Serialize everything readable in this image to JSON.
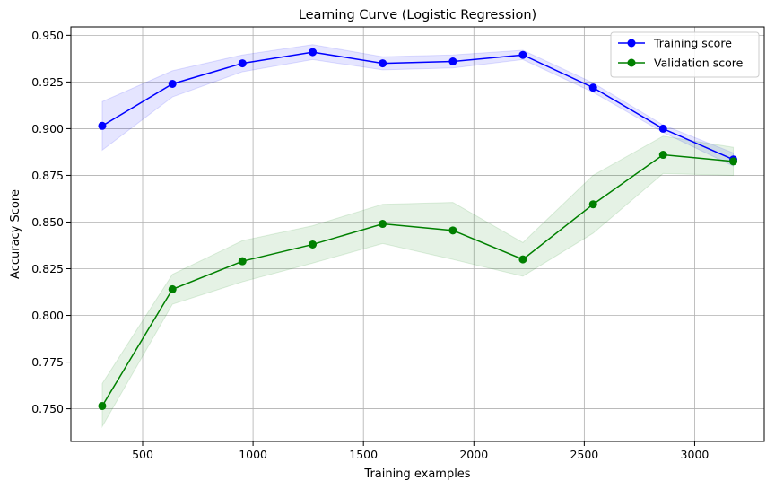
{
  "colors": {
    "training": "#0000ff",
    "validation": "#008000",
    "grid": "#b0b0b0",
    "axis": "#000000"
  },
  "chart_data": {
    "type": "line",
    "title": "Learning Curve (Logistic Regression)",
    "xlabel": "Training examples",
    "ylabel": "Accuracy Score",
    "xlim": [
      175,
      3315
    ],
    "ylim": [
      0.7325,
      0.9545
    ],
    "xticks": [
      500,
      1000,
      1500,
      2000,
      2500,
      3000
    ],
    "xtick_labels": [
      "500",
      "1000",
      "1500",
      "2000",
      "2500",
      "3000"
    ],
    "yticks": [
      0.75,
      0.775,
      0.8,
      0.825,
      0.85,
      0.875,
      0.9,
      0.925,
      0.95
    ],
    "ytick_labels": [
      "0.750",
      "0.775",
      "0.800",
      "0.825",
      "0.850",
      "0.875",
      "0.900",
      "0.925",
      "0.950"
    ],
    "grid": true,
    "legend_position": "top-right",
    "x": [
      317,
      635,
      952,
      1270,
      1587,
      1905,
      2222,
      2540,
      2857,
      3175
    ],
    "series": [
      {
        "name": "Training score",
        "color": "#0000ff",
        "values": [
          0.9015,
          0.924,
          0.935,
          0.941,
          0.935,
          0.936,
          0.9395,
          0.922,
          0.9,
          0.8835
        ],
        "upper": [
          0.9145,
          0.931,
          0.9395,
          0.945,
          0.9385,
          0.9395,
          0.942,
          0.9245,
          0.902,
          0.887
        ],
        "lower": [
          0.8885,
          0.917,
          0.9305,
          0.937,
          0.9315,
          0.9325,
          0.937,
          0.9195,
          0.898,
          0.88
        ]
      },
      {
        "name": "Validation score",
        "color": "#008000",
        "values": [
          0.7515,
          0.814,
          0.829,
          0.838,
          0.849,
          0.8455,
          0.83,
          0.8595,
          0.886,
          0.8825
        ],
        "upper": [
          0.7635,
          0.822,
          0.84,
          0.848,
          0.8595,
          0.8605,
          0.839,
          0.875,
          0.896,
          0.89
        ],
        "lower": [
          0.7405,
          0.806,
          0.818,
          0.828,
          0.8385,
          0.83,
          0.821,
          0.844,
          0.876,
          0.875
        ]
      }
    ]
  }
}
